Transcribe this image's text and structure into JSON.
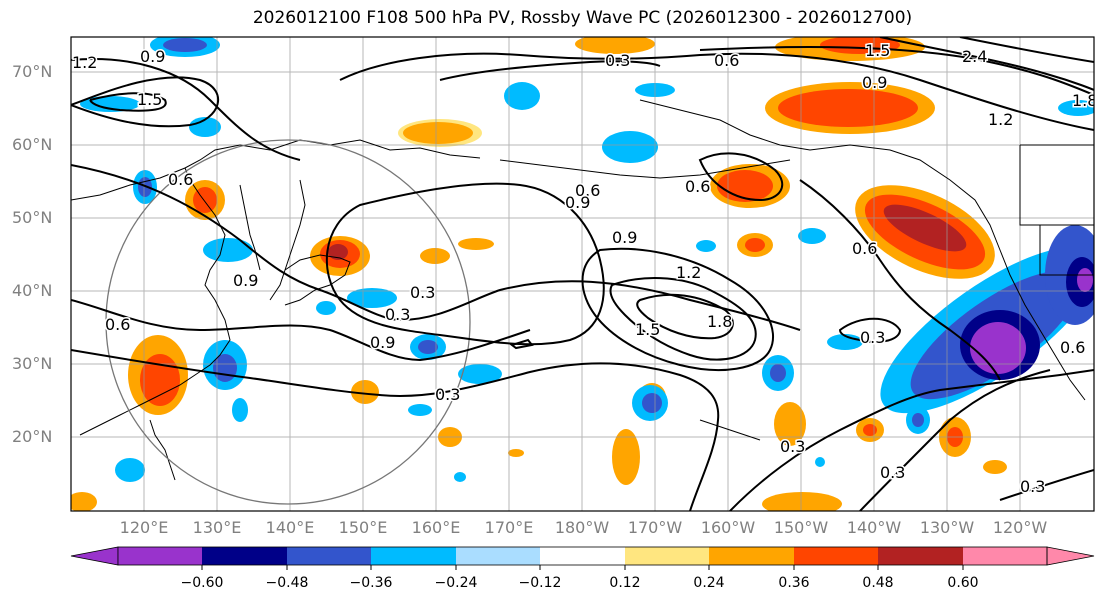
{
  "title": "2026012100 F108 500 hPa PV, Rossby Wave PC (2026012300 - 2026012700)",
  "lat_labels": [
    "70°N",
    "60°N",
    "50°N",
    "40°N",
    "30°N",
    "20°N"
  ],
  "lon_labels": [
    "120°E",
    "130°E",
    "140°E",
    "150°E",
    "160°E",
    "170°E",
    "180°W",
    "170°W",
    "160°W",
    "150°W",
    "140°W",
    "130°W",
    "120°W"
  ],
  "colorbar": {
    "ticks": [
      "−0.60",
      "−0.48",
      "−0.36",
      "−0.24",
      "−0.12",
      "0.12",
      "0.24",
      "0.36",
      "0.48",
      "0.60"
    ],
    "colors": [
      "#9933cc",
      "#000088",
      "#3355cc",
      "#00bbff",
      "#aaddff",
      "#ffffff",
      "#ffe680",
      "#ffa500",
      "#ff4500",
      "#b22222",
      "#ff88aa"
    ]
  },
  "contour_labels": [
    "0.9",
    "1.2",
    "1.5",
    "0.3",
    "0.6",
    "1.2",
    "0.9",
    "2.4",
    "1.8",
    "0.9",
    "1.5",
    "0.6",
    "0.6",
    "0.9",
    "1.2",
    "1.5",
    "1.8",
    "0.6",
    "0.3",
    "0.3",
    "0.3",
    "0.9",
    "0.3",
    "0.6",
    "0.9",
    "0.6",
    "0.3",
    "0.3",
    "0.3",
    "0.6"
  ]
}
